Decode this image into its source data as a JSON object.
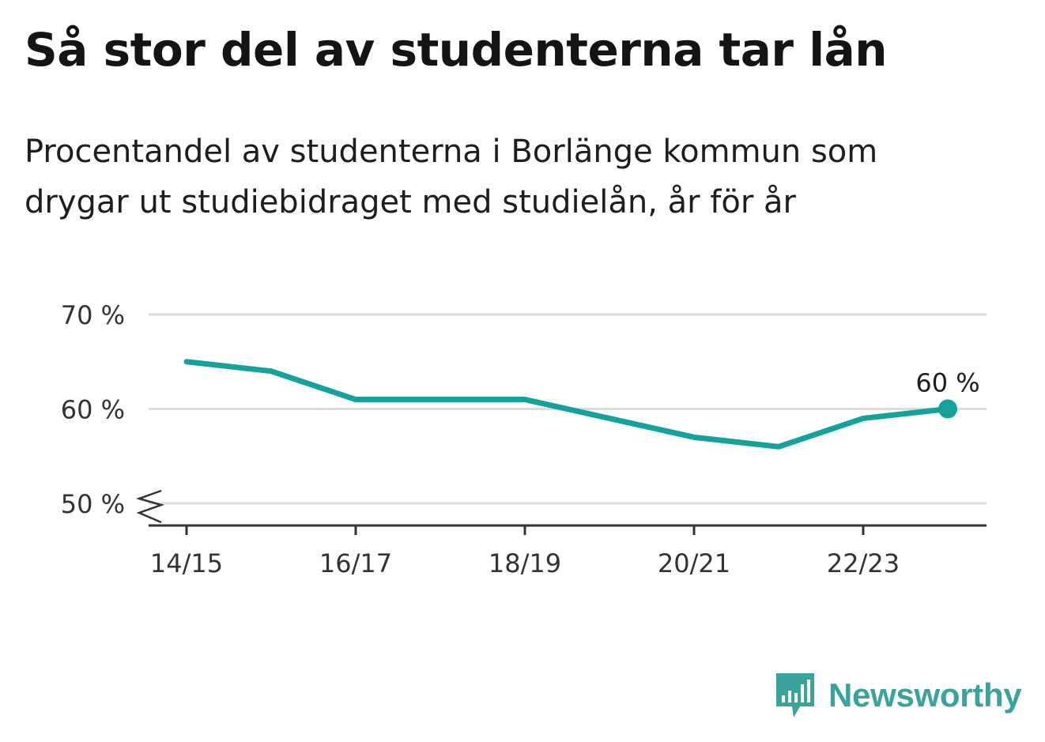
{
  "title": "Så stor del av studenterna tar lån",
  "subtitle_lines": [
    "Procentandel av studenterna i Borlänge kommun som",
    "drygar ut studiebidraget med studielån, år för år"
  ],
  "brand": {
    "name": "Newsworthy",
    "color": "#3aa39c"
  },
  "chart_data": {
    "type": "line",
    "title": "Så stor del av studenterna tar lån",
    "subtitle": "Procentandel av studenterna i Borlänge kommun som drygar ut studiebidraget med studielån, år för år",
    "x": [
      "14/15",
      "15/16",
      "16/17",
      "17/18",
      "18/19",
      "19/20",
      "20/21",
      "21/22",
      "22/23",
      "23/24"
    ],
    "x_tick_labels": [
      "14/15",
      "16/17",
      "18/19",
      "20/21",
      "22/23"
    ],
    "series": [
      {
        "values": [
          65,
          64,
          61,
          61,
          61,
          59,
          57,
          56,
          59,
          60
        ],
        "color": "#15a29a"
      }
    ],
    "ylim": [
      50,
      70
    ],
    "y_ticks": [
      50,
      60,
      70
    ],
    "y_tick_labels": [
      "50 %",
      "60 %",
      "70 %"
    ],
    "y_axis_break": true,
    "grid": true,
    "end_label": "60 %",
    "xlabel": "",
    "ylabel": ""
  }
}
